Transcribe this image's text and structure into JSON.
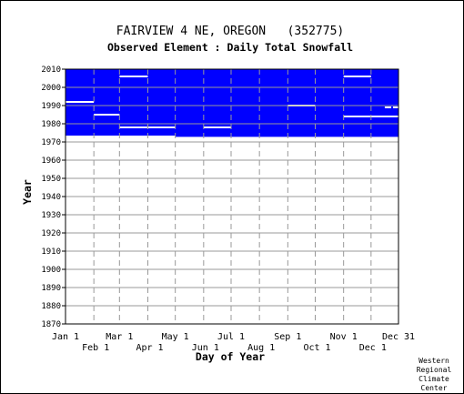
{
  "chart_data": {
    "type": "table",
    "title": "FAIRVIEW 4 NE, OREGON   (352775)",
    "subtitle": "Observed Element : Daily Total Snowfall",
    "xlabel": "Day of Year",
    "ylabel": "Year",
    "ylim": [
      1870,
      2010
    ],
    "y_ticks": [
      "2010",
      "2000",
      "1990",
      "1980",
      "1970",
      "1960",
      "1950",
      "1940",
      "1930",
      "1920",
      "1910",
      "1900",
      "1890",
      "1880",
      "1870"
    ],
    "x_ticks_top_row": [
      {
        "label": "Jan 1",
        "day": 1
      },
      {
        "label": "Mar 1",
        "day": 60
      },
      {
        "label": "May 1",
        "day": 121
      },
      {
        "label": "Jul 1",
        "day": 182
      },
      {
        "label": "Sep 1",
        "day": 244
      },
      {
        "label": "Nov 1",
        "day": 305
      },
      {
        "label": "Dec 31",
        "day": 365
      }
    ],
    "x_ticks_bottom_row": [
      {
        "label": "Feb 1",
        "day": 32
      },
      {
        "label": "Apr 1",
        "day": 91
      },
      {
        "label": "Jun 1",
        "day": 152
      },
      {
        "label": "Aug 1",
        "day": 213
      },
      {
        "label": "Oct 1",
        "day": 274
      },
      {
        "label": "Dec 1",
        "day": 335
      }
    ],
    "data_color": "#0000ff",
    "data_regions": [
      {
        "day_start": 1,
        "day_end": 365,
        "year_start": 1973.5,
        "year_end": 2010
      },
      {
        "day_start": 121,
        "day_end": 365,
        "year_start": 1972.8,
        "year_end": 1973.5
      }
    ],
    "missing_segments": [
      {
        "day_start": 1,
        "day_end": 32,
        "year": 1992
      },
      {
        "day_start": 32,
        "day_end": 60,
        "year": 1985
      },
      {
        "day_start": 60,
        "day_end": 91,
        "year": 2006
      },
      {
        "day_start": 60,
        "day_end": 121,
        "year": 1978
      },
      {
        "day_start": 152,
        "day_end": 182,
        "year": 1978
      },
      {
        "day_start": 244,
        "day_end": 274,
        "year": 1990
      },
      {
        "day_start": 305,
        "day_end": 335,
        "year": 2006
      },
      {
        "day_start": 305,
        "day_end": 365,
        "year": 1984
      },
      {
        "day_start": 350,
        "day_end": 357,
        "year": 1989
      },
      {
        "day_start": 359,
        "day_end": 365,
        "year": 1989
      }
    ],
    "grid": true,
    "grid_style": "horizontal solid, vertical dashed",
    "credit": [
      "Western",
      "Regional",
      "Climate",
      "Center"
    ]
  }
}
